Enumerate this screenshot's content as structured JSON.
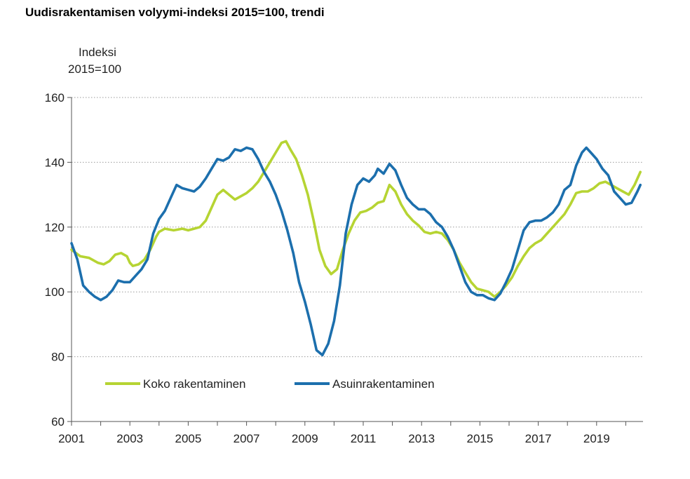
{
  "chart_data": {
    "type": "line",
    "title": "Uudisrakentamisen volyymi-indeksi 2015=100, trendi",
    "ylabel": [
      "Indeksi",
      "2015=100"
    ],
    "xlabel": "",
    "xlim": [
      2001,
      2020.5
    ],
    "ylim": [
      60,
      160
    ],
    "yticks": [
      60,
      80,
      100,
      120,
      140,
      160
    ],
    "xticks": [
      "2001",
      "2003",
      "2005",
      "2007",
      "2009",
      "2011",
      "2013",
      "2015",
      "2017",
      "2019"
    ],
    "grid": "horizontal dotted",
    "legend_position": "lower-left",
    "series": [
      {
        "name": "Koko rakentaminen",
        "color": "#b6d433",
        "points": [
          [
            2001.0,
            113
          ],
          [
            2001.3,
            111
          ],
          [
            2001.6,
            110.5
          ],
          [
            2001.9,
            109
          ],
          [
            2002.1,
            108.5
          ],
          [
            2002.3,
            109.5
          ],
          [
            2002.5,
            111.5
          ],
          [
            2002.7,
            112
          ],
          [
            2002.9,
            111
          ],
          [
            2003.0,
            109
          ],
          [
            2003.1,
            108
          ],
          [
            2003.3,
            108.5
          ],
          [
            2003.5,
            110
          ],
          [
            2003.7,
            113
          ],
          [
            2003.9,
            117
          ],
          [
            2004.0,
            118.5
          ],
          [
            2004.2,
            119.5
          ],
          [
            2004.5,
            119
          ],
          [
            2004.8,
            119.5
          ],
          [
            2005.0,
            119
          ],
          [
            2005.2,
            119.5
          ],
          [
            2005.4,
            120
          ],
          [
            2005.6,
            122
          ],
          [
            2005.8,
            126
          ],
          [
            2006.0,
            130
          ],
          [
            2006.2,
            131.5
          ],
          [
            2006.4,
            130
          ],
          [
            2006.6,
            128.5
          ],
          [
            2006.8,
            129.5
          ],
          [
            2007.0,
            130.5
          ],
          [
            2007.2,
            132
          ],
          [
            2007.4,
            134
          ],
          [
            2007.6,
            137
          ],
          [
            2007.8,
            140
          ],
          [
            2008.0,
            143
          ],
          [
            2008.2,
            146
          ],
          [
            2008.35,
            146.5
          ],
          [
            2008.5,
            144
          ],
          [
            2008.7,
            141
          ],
          [
            2008.9,
            136
          ],
          [
            2009.1,
            130
          ],
          [
            2009.3,
            122
          ],
          [
            2009.5,
            113
          ],
          [
            2009.7,
            108
          ],
          [
            2009.9,
            105.5
          ],
          [
            2010.1,
            107
          ],
          [
            2010.3,
            113
          ],
          [
            2010.5,
            118
          ],
          [
            2010.7,
            122
          ],
          [
            2010.9,
            124.5
          ],
          [
            2011.1,
            125
          ],
          [
            2011.3,
            126
          ],
          [
            2011.5,
            127.5
          ],
          [
            2011.7,
            128
          ],
          [
            2011.9,
            133
          ],
          [
            2012.1,
            131
          ],
          [
            2012.3,
            127
          ],
          [
            2012.5,
            124
          ],
          [
            2012.7,
            122
          ],
          [
            2012.9,
            120.5
          ],
          [
            2013.1,
            118.5
          ],
          [
            2013.3,
            118
          ],
          [
            2013.5,
            118.5
          ],
          [
            2013.7,
            118
          ],
          [
            2013.9,
            116
          ],
          [
            2014.1,
            113
          ],
          [
            2014.3,
            109
          ],
          [
            2014.5,
            106
          ],
          [
            2014.7,
            103
          ],
          [
            2014.9,
            101
          ],
          [
            2015.1,
            100.5
          ],
          [
            2015.3,
            100
          ],
          [
            2015.5,
            98.5
          ],
          [
            2015.7,
            100
          ],
          [
            2015.9,
            102
          ],
          [
            2016.1,
            104.5
          ],
          [
            2016.3,
            108
          ],
          [
            2016.5,
            111
          ],
          [
            2016.7,
            113.5
          ],
          [
            2016.9,
            115
          ],
          [
            2017.1,
            116
          ],
          [
            2017.3,
            118
          ],
          [
            2017.5,
            120
          ],
          [
            2017.7,
            122
          ],
          [
            2017.9,
            124
          ],
          [
            2018.1,
            127
          ],
          [
            2018.3,
            130.5
          ],
          [
            2018.5,
            131
          ],
          [
            2018.7,
            131
          ],
          [
            2018.9,
            132
          ],
          [
            2019.1,
            133.5
          ],
          [
            2019.3,
            134
          ],
          [
            2019.5,
            133
          ],
          [
            2019.7,
            132
          ],
          [
            2019.9,
            131
          ],
          [
            2020.1,
            130
          ],
          [
            2020.3,
            133
          ],
          [
            2020.5,
            137
          ]
        ]
      },
      {
        "name": "Asuinrakentaminen",
        "color": "#1c6fad",
        "points": [
          [
            2001.0,
            115
          ],
          [
            2001.2,
            110
          ],
          [
            2001.4,
            102
          ],
          [
            2001.6,
            100
          ],
          [
            2001.8,
            98.5
          ],
          [
            2002.0,
            97.5
          ],
          [
            2002.2,
            98.5
          ],
          [
            2002.4,
            100.5
          ],
          [
            2002.6,
            103.5
          ],
          [
            2002.8,
            103
          ],
          [
            2003.0,
            103
          ],
          [
            2003.2,
            105
          ],
          [
            2003.4,
            107
          ],
          [
            2003.6,
            110
          ],
          [
            2003.8,
            118
          ],
          [
            2004.0,
            122.5
          ],
          [
            2004.2,
            125
          ],
          [
            2004.4,
            129
          ],
          [
            2004.6,
            133
          ],
          [
            2004.8,
            132
          ],
          [
            2005.0,
            131.5
          ],
          [
            2005.2,
            131
          ],
          [
            2005.4,
            132.5
          ],
          [
            2005.6,
            135
          ],
          [
            2005.8,
            138
          ],
          [
            2006.0,
            141
          ],
          [
            2006.2,
            140.5
          ],
          [
            2006.4,
            141.5
          ],
          [
            2006.6,
            144
          ],
          [
            2006.8,
            143.5
          ],
          [
            2007.0,
            144.5
          ],
          [
            2007.2,
            144
          ],
          [
            2007.4,
            141
          ],
          [
            2007.6,
            137
          ],
          [
            2007.8,
            134
          ],
          [
            2008.0,
            130
          ],
          [
            2008.2,
            125
          ],
          [
            2008.4,
            119
          ],
          [
            2008.6,
            112
          ],
          [
            2008.8,
            103
          ],
          [
            2009.0,
            97
          ],
          [
            2009.2,
            90
          ],
          [
            2009.4,
            82
          ],
          [
            2009.6,
            80.5
          ],
          [
            2009.8,
            84
          ],
          [
            2010.0,
            91
          ],
          [
            2010.2,
            102
          ],
          [
            2010.4,
            118
          ],
          [
            2010.6,
            127
          ],
          [
            2010.8,
            133
          ],
          [
            2011.0,
            135
          ],
          [
            2011.2,
            134
          ],
          [
            2011.4,
            136
          ],
          [
            2011.5,
            138
          ],
          [
            2011.7,
            136.5
          ],
          [
            2011.9,
            139.5
          ],
          [
            2012.1,
            137.5
          ],
          [
            2012.3,
            133
          ],
          [
            2012.5,
            129
          ],
          [
            2012.7,
            127
          ],
          [
            2012.9,
            125.5
          ],
          [
            2013.1,
            125.5
          ],
          [
            2013.3,
            124
          ],
          [
            2013.5,
            121.5
          ],
          [
            2013.7,
            120
          ],
          [
            2013.9,
            117
          ],
          [
            2014.1,
            113
          ],
          [
            2014.3,
            108
          ],
          [
            2014.5,
            103
          ],
          [
            2014.7,
            100
          ],
          [
            2014.9,
            99
          ],
          [
            2015.1,
            99
          ],
          [
            2015.3,
            98
          ],
          [
            2015.5,
            97.5
          ],
          [
            2015.7,
            99.5
          ],
          [
            2015.9,
            103
          ],
          [
            2016.1,
            107
          ],
          [
            2016.3,
            113
          ],
          [
            2016.5,
            119
          ],
          [
            2016.7,
            121.5
          ],
          [
            2016.9,
            122
          ],
          [
            2017.1,
            122
          ],
          [
            2017.3,
            123
          ],
          [
            2017.5,
            124.5
          ],
          [
            2017.7,
            127
          ],
          [
            2017.9,
            131.5
          ],
          [
            2018.1,
            133
          ],
          [
            2018.3,
            139
          ],
          [
            2018.5,
            143
          ],
          [
            2018.65,
            144.5
          ],
          [
            2018.8,
            143
          ],
          [
            2019.0,
            141
          ],
          [
            2019.2,
            138
          ],
          [
            2019.4,
            136
          ],
          [
            2019.6,
            131
          ],
          [
            2019.8,
            129
          ],
          [
            2020.0,
            127
          ],
          [
            2020.2,
            127.5
          ],
          [
            2020.4,
            131
          ],
          [
            2020.5,
            133
          ]
        ]
      }
    ]
  }
}
